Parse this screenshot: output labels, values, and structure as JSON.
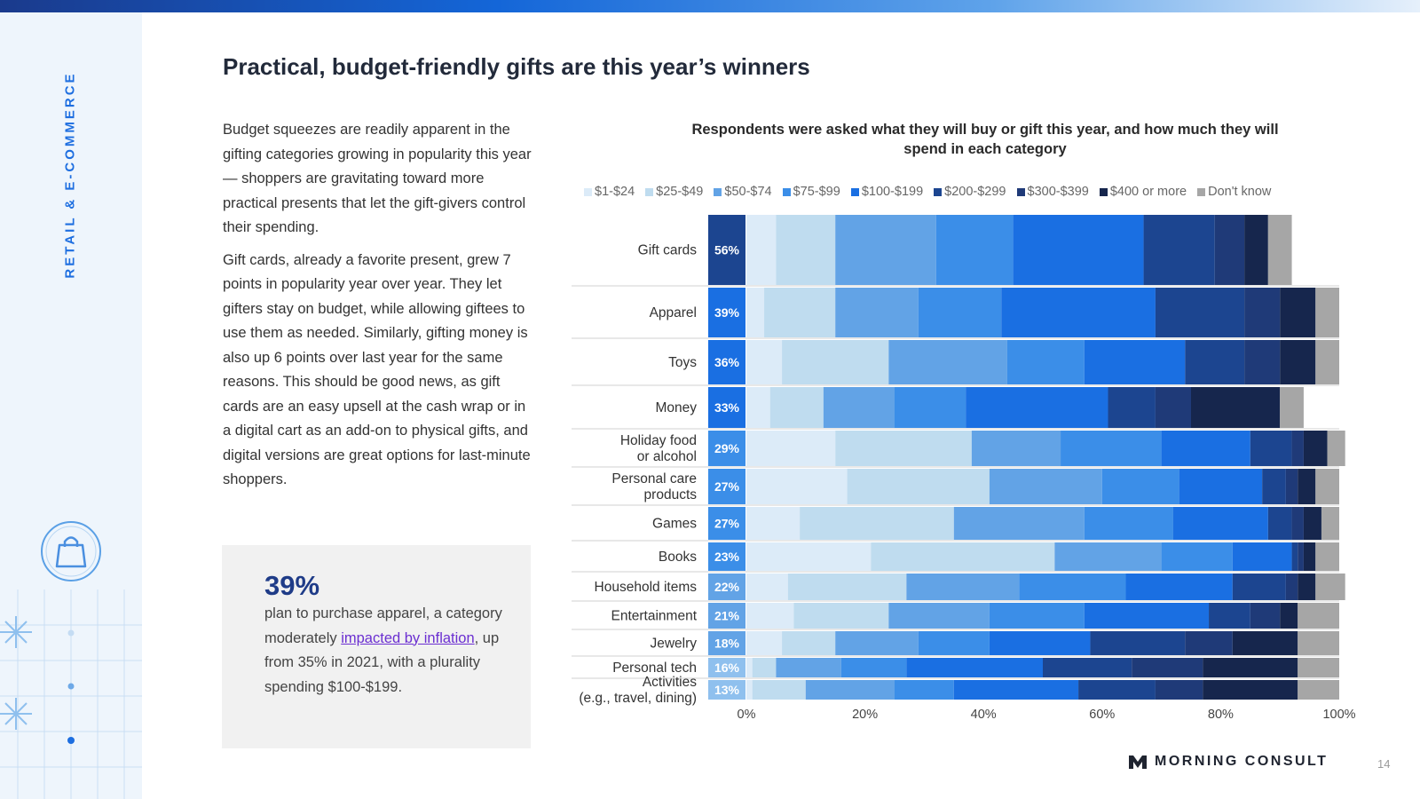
{
  "side_label": "RETAIL & E-COMMERCE",
  "title": "Practical, budget-friendly gifts are this year’s winners",
  "paragraphs": [
    "Budget squeezes are readily apparent in the gifting categories growing in popularity this year — shoppers are gravitating toward more practical presents that let the gift-givers control their spending.",
    "Gift cards, already a favorite present, grew 7 points in popularity year over year. They let gifters stay on budget, while allowing giftees to use them as needed. Similarly, gifting money is also up 6 points over last year for the same reasons. This should be good news, as gift cards are an easy upsell at the cash wrap or in a digital cart as an add-on to physical gifts, and digital versions are great options for last-minute shoppers."
  ],
  "callout": {
    "stat": "39%",
    "text_before": "plan to purchase apparel, a category moderately ",
    "link_text": "impacted by inflation",
    "text_after": ", up from 35% in 2021, with a plurality spending $100-$199."
  },
  "chart_title": "Respondents were asked what they will buy or gift this year, and how much they will spend in each category",
  "legend": [
    {
      "label": "$1-$24",
      "color": "#dcebf8"
    },
    {
      "label": "$25-$49",
      "color": "#bfdcef"
    },
    {
      "label": "$50-$74",
      "color": "#62a3e6"
    },
    {
      "label": "$75-$99",
      "color": "#3b8ee8"
    },
    {
      "label": "$100-$199",
      "color": "#1a6fe2"
    },
    {
      "label": "$200-$299",
      "color": "#1c4590"
    },
    {
      "label": "$300-$399",
      "color": "#1f3a78"
    },
    {
      "label": "$400 or more",
      "color": "#16264d"
    },
    {
      "label": "Don't know",
      "color": "#a6a6a6"
    }
  ],
  "footer": {
    "logo": "MORNING CONSULT",
    "page": "14"
  },
  "chart_data": {
    "type": "bar",
    "orientation": "horizontal",
    "stacked": true,
    "percent_stacked": true,
    "title": "Respondents were asked what they will buy or gift this year, and how much they will spend in each category",
    "xlim": [
      0,
      100
    ],
    "x_ticks": [
      "0%",
      "20%",
      "40%",
      "60%",
      "80%",
      "100%"
    ],
    "categories": [
      [
        "Gift cards"
      ],
      [
        "Apparel"
      ],
      [
        "Toys"
      ],
      [
        "Money"
      ],
      [
        "Holiday food",
        "or alcohol"
      ],
      [
        "Personal care",
        "products"
      ],
      [
        "Games"
      ],
      [
        "Books"
      ],
      [
        "Household items"
      ],
      [
        "Entertainment"
      ],
      [
        "Jewelry"
      ],
      [
        "Personal tech"
      ],
      [
        "Activities",
        "(e.g., travel, dining)"
      ]
    ],
    "purchase_share": [
      "56%",
      "39%",
      "36%",
      "33%",
      "29%",
      "27%",
      "27%",
      "23%",
      "22%",
      "21%",
      "18%",
      "16%",
      "13%"
    ],
    "purchase_share_colors": [
      "#1c4590",
      "#1a6fe2",
      "#1a6fe2",
      "#1a6fe2",
      "#3b8ee8",
      "#3b8ee8",
      "#3b8ee8",
      "#3b8ee8",
      "#62a3e6",
      "#62a3e6",
      "#62a3e6",
      "#8fc0ee",
      "#8fc0ee"
    ],
    "series": [
      {
        "name": "$1-$24",
        "values": [
          5,
          3,
          6,
          4,
          15,
          17,
          9,
          21,
          7,
          8,
          6,
          1,
          1
        ]
      },
      {
        "name": "$25-$49",
        "values": [
          10,
          12,
          18,
          9,
          23,
          24,
          26,
          31,
          20,
          16,
          9,
          4,
          9
        ]
      },
      {
        "name": "$50-$74",
        "values": [
          17,
          14,
          20,
          12,
          15,
          19,
          22,
          18,
          19,
          17,
          14,
          11,
          15
        ]
      },
      {
        "name": "$75-$99",
        "values": [
          13,
          14,
          13,
          12,
          17,
          13,
          15,
          12,
          18,
          16,
          12,
          11,
          10
        ]
      },
      {
        "name": "$100-$199",
        "values": [
          22,
          26,
          17,
          24,
          15,
          14,
          16,
          10,
          18,
          21,
          17,
          23,
          21
        ]
      },
      {
        "name": "$200-$299",
        "values": [
          12,
          15,
          10,
          8,
          7,
          4,
          4,
          1,
          9,
          7,
          16,
          15,
          13
        ]
      },
      {
        "name": "$300-$399",
        "values": [
          5,
          6,
          6,
          6,
          2,
          2,
          2,
          1,
          2,
          5,
          8,
          12,
          8
        ]
      },
      {
        "name": "$400 or more",
        "values": [
          4,
          6,
          6,
          15,
          4,
          3,
          3,
          2,
          3,
          3,
          11,
          16,
          16
        ]
      },
      {
        "name": "Don't know",
        "values": [
          4,
          4,
          4,
          4,
          3,
          4,
          3,
          4,
          5,
          7,
          7,
          7,
          7
        ]
      }
    ]
  }
}
